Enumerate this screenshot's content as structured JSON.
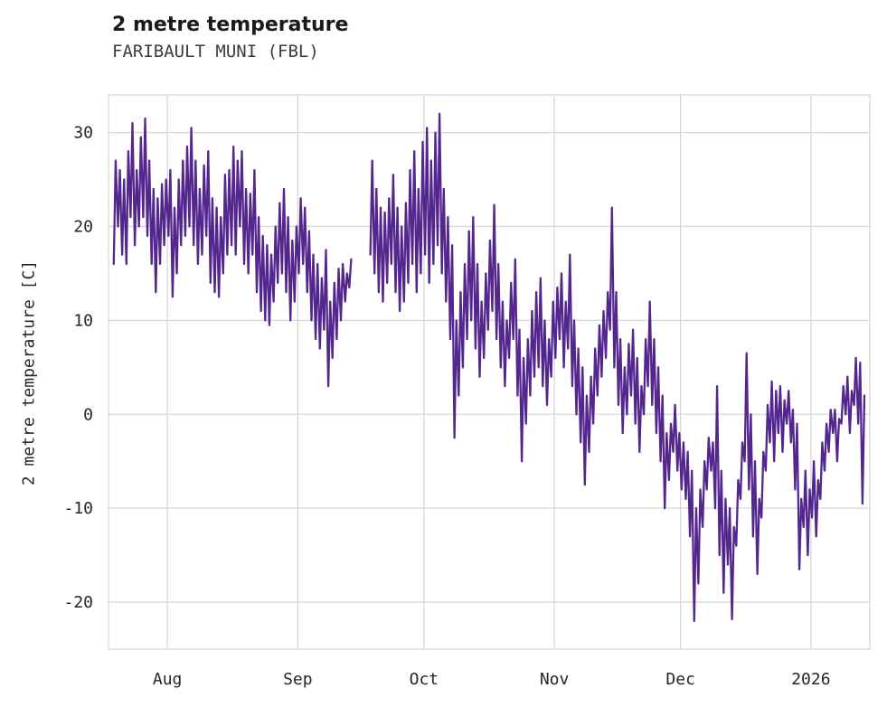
{
  "header": {
    "title": "2 metre temperature",
    "subtitle": "FARIBAULT MUNI (FBL)"
  },
  "chart_data": {
    "type": "line",
    "title": "2 metre temperature",
    "subtitle": "FARIBAULT MUNI (FBL)",
    "xlabel": "",
    "ylabel": "2 metre temperature [C]",
    "line_color": "#54278f",
    "grid_color": "#d8d8d8",
    "grid": true,
    "legend": "none",
    "x_unit": "days since 2025-07-19 (ticks mark month starts)",
    "xlim": [
      -1,
      180
    ],
    "ylim": [
      -25,
      34
    ],
    "yticks": [
      -20,
      -10,
      0,
      10,
      20,
      30
    ],
    "xticks": [
      {
        "x": 13,
        "label": "Aug"
      },
      {
        "x": 44,
        "label": "Sep"
      },
      {
        "x": 74,
        "label": "Oct"
      },
      {
        "x": 105,
        "label": "Nov"
      },
      {
        "x": 135,
        "label": "Dec"
      },
      {
        "x": 166,
        "label": "2026"
      }
    ],
    "daily_min_max_segments": [
      [
        [
          0,
          16,
          27
        ],
        [
          1,
          20,
          26
        ],
        [
          2,
          17,
          25
        ],
        [
          3,
          16,
          28
        ],
        [
          4,
          21,
          31
        ],
        [
          5,
          18,
          26
        ],
        [
          6,
          20,
          29.5
        ],
        [
          7,
          21,
          31.5
        ],
        [
          8,
          19,
          27
        ],
        [
          9,
          16,
          24
        ],
        [
          10,
          13,
          23
        ],
        [
          11,
          16,
          24.5
        ],
        [
          12,
          18,
          25
        ],
        [
          13,
          19,
          26
        ],
        [
          14,
          12.5,
          22
        ],
        [
          15,
          15,
          25
        ],
        [
          16,
          18,
          27
        ],
        [
          17,
          19,
          28.5
        ],
        [
          18,
          20,
          30.5
        ],
        [
          19,
          18,
          27
        ],
        [
          20,
          16,
          24
        ],
        [
          21,
          17,
          26.5
        ],
        [
          22,
          19,
          28
        ],
        [
          23,
          14,
          23
        ],
        [
          24,
          13,
          22
        ],
        [
          25,
          12.5,
          21
        ],
        [
          26,
          15,
          25.5
        ],
        [
          27,
          17,
          26
        ],
        [
          28,
          18,
          28.5
        ],
        [
          29,
          17,
          27
        ],
        [
          30,
          20,
          28
        ],
        [
          31,
          16,
          24
        ],
        [
          32,
          15,
          23.5
        ],
        [
          33,
          17,
          26
        ],
        [
          34,
          13,
          21
        ],
        [
          35,
          11,
          19
        ],
        [
          36,
          10,
          18
        ],
        [
          37,
          9.5,
          17
        ],
        [
          38,
          12,
          20
        ],
        [
          39,
          14,
          22.5
        ],
        [
          40,
          15,
          24
        ],
        [
          41,
          13,
          21
        ],
        [
          42,
          10,
          18.5
        ],
        [
          43,
          12,
          20
        ],
        [
          44,
          15,
          23
        ],
        [
          45,
          16,
          22
        ],
        [
          46,
          13,
          19.5
        ],
        [
          47,
          10,
          17
        ],
        [
          48,
          8,
          16
        ],
        [
          49,
          7,
          14.5
        ],
        [
          50,
          9,
          17.5
        ],
        [
          51,
          3,
          12
        ],
        [
          52,
          6,
          14
        ],
        [
          53,
          8,
          15.5
        ],
        [
          54,
          10,
          16
        ],
        [
          55,
          12,
          15
        ],
        [
          56,
          13.5,
          16.5
        ]
      ],
      [
        [
          61,
          17,
          27
        ],
        [
          62,
          15,
          24
        ],
        [
          63,
          13,
          22
        ],
        [
          64,
          12,
          21.5
        ],
        [
          65,
          14,
          23
        ],
        [
          66,
          16,
          25.5
        ],
        [
          67,
          13,
          22
        ],
        [
          68,
          11,
          20
        ],
        [
          69,
          12,
          22.5
        ],
        [
          70,
          14,
          26
        ],
        [
          71,
          16,
          28
        ],
        [
          72,
          13,
          24
        ],
        [
          73,
          15,
          29
        ],
        [
          74,
          17,
          30.5
        ],
        [
          75,
          14,
          27
        ],
        [
          76,
          16,
          30
        ],
        [
          77,
          18,
          32
        ],
        [
          78,
          15,
          24
        ],
        [
          79,
          12,
          21
        ],
        [
          80,
          8,
          18
        ],
        [
          81,
          -2.5,
          10
        ],
        [
          82,
          2,
          13
        ],
        [
          83,
          5,
          16
        ],
        [
          84,
          8,
          19.5
        ],
        [
          85,
          10,
          21
        ],
        [
          86,
          7,
          16
        ],
        [
          87,
          4,
          12
        ],
        [
          88,
          6,
          15
        ],
        [
          89,
          9,
          18.5
        ],
        [
          90,
          11,
          22.3
        ],
        [
          91,
          8,
          16
        ],
        [
          92,
          5,
          12
        ],
        [
          93,
          3,
          10
        ],
        [
          94,
          6,
          14
        ],
        [
          95,
          8,
          16.5
        ],
        [
          96,
          2,
          9
        ],
        [
          97,
          -5,
          6
        ],
        [
          98,
          -1,
          8
        ],
        [
          99,
          2,
          11
        ],
        [
          100,
          4,
          13
        ],
        [
          101,
          5,
          14.5
        ],
        [
          102,
          3,
          10
        ],
        [
          103,
          1,
          8
        ],
        [
          104,
          4,
          12
        ],
        [
          105,
          6,
          13.5
        ],
        [
          106,
          8,
          15
        ],
        [
          107,
          5,
          12
        ],
        [
          108,
          7,
          17
        ],
        [
          109,
          3,
          10
        ],
        [
          110,
          0,
          7
        ],
        [
          111,
          -3,
          5
        ],
        [
          112,
          -7.5,
          2
        ],
        [
          113,
          -4,
          4
        ],
        [
          114,
          -1,
          7
        ],
        [
          115,
          2,
          9.5
        ],
        [
          116,
          4,
          11
        ],
        [
          117,
          6,
          13
        ],
        [
          118,
          9,
          22
        ],
        [
          119,
          5,
          13
        ],
        [
          120,
          1,
          8
        ],
        [
          121,
          -2,
          5
        ],
        [
          122,
          0,
          7.5
        ],
        [
          123,
          2,
          9
        ],
        [
          124,
          -1,
          6
        ],
        [
          125,
          -4,
          3
        ],
        [
          126,
          0,
          8
        ],
        [
          127,
          3,
          12
        ],
        [
          128,
          1,
          8
        ],
        [
          129,
          -2,
          5
        ],
        [
          130,
          -5,
          2
        ],
        [
          131,
          -10,
          -2
        ],
        [
          132,
          -7,
          -1
        ],
        [
          133,
          -4,
          1
        ],
        [
          134,
          -6,
          -2
        ],
        [
          135,
          -8,
          -3
        ],
        [
          136,
          -9,
          -4
        ],
        [
          137,
          -13,
          -6
        ],
        [
          138,
          -22,
          -10
        ],
        [
          139,
          -18,
          -8
        ],
        [
          140,
          -12,
          -5
        ],
        [
          141,
          -8,
          -2.5
        ],
        [
          142,
          -6,
          -3
        ],
        [
          143,
          -10,
          3
        ],
        [
          144,
          -15,
          -6
        ],
        [
          145,
          -19,
          -9
        ],
        [
          146,
          -16,
          -10
        ],
        [
          147,
          -21.8,
          -12
        ],
        [
          148,
          -14,
          -7
        ],
        [
          149,
          -9,
          -3
        ],
        [
          150,
          -5,
          6.5
        ],
        [
          151,
          -8,
          0
        ],
        [
          152,
          -13,
          -5
        ],
        [
          153,
          -17,
          -9
        ],
        [
          154,
          -11,
          -4
        ],
        [
          155,
          -6,
          1
        ],
        [
          156,
          -3,
          3.5
        ],
        [
          157,
          -5,
          2.5
        ],
        [
          158,
          -2,
          3
        ],
        [
          159,
          -4,
          1.5
        ],
        [
          160,
          -1,
          2.5
        ],
        [
          161,
          -3,
          0.5
        ],
        [
          162,
          -8,
          -1
        ],
        [
          163,
          -16.5,
          -9
        ],
        [
          164,
          -12,
          -6
        ],
        [
          165,
          -15,
          -8
        ],
        [
          166,
          -11,
          -5
        ],
        [
          167,
          -13,
          -7
        ],
        [
          168,
          -9,
          -3
        ],
        [
          169,
          -6,
          -1
        ],
        [
          170,
          -4,
          0.5
        ],
        [
          171,
          -2,
          0.5
        ],
        [
          172,
          -5,
          -0.5
        ],
        [
          173,
          -1,
          3
        ],
        [
          174,
          0,
          4
        ],
        [
          175,
          -2,
          2.5
        ],
        [
          176,
          1,
          6
        ],
        [
          177,
          -1,
          5.5
        ],
        [
          178,
          -9.5,
          2
        ]
      ]
    ]
  }
}
